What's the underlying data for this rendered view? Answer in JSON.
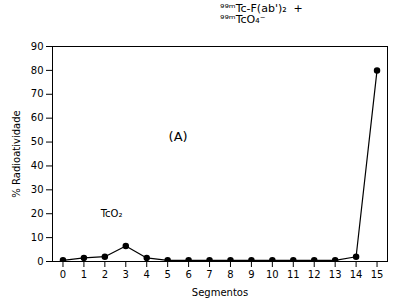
{
  "chart_data": {
    "type": "line",
    "x": [
      0,
      1,
      2,
      3,
      4,
      5,
      6,
      7,
      8,
      9,
      10,
      11,
      12,
      13,
      14,
      15
    ],
    "values": [
      0.5,
      1.5,
      2.0,
      6.5,
      1.5,
      0.5,
      0.5,
      0.5,
      0.5,
      0.5,
      0.5,
      0.5,
      0.5,
      0.5,
      2.0,
      80.0
    ],
    "xlabel": "Segmentos",
    "ylabel": "% Radioatividade",
    "xlim": [
      -0.5,
      15.5
    ],
    "ylim": [
      0,
      90
    ],
    "xticks": [
      0,
      1,
      2,
      3,
      4,
      5,
      6,
      7,
      8,
      9,
      10,
      11,
      12,
      13,
      14,
      15
    ],
    "yticks": [
      0,
      10,
      20,
      30,
      40,
      50,
      60,
      70,
      80,
      90
    ],
    "color": "#000000",
    "marker": "o",
    "grid": false,
    "annotations": [
      {
        "text": "(A)",
        "x": 5.5,
        "y": 52
      },
      {
        "text": "TcO₂",
        "x": 1.8,
        "y": 20
      },
      {
        "text": "⁹⁹ᵐTc-F(ab')₂  +\n⁹⁹ᵐTcO₄⁻"
      }
    ]
  }
}
